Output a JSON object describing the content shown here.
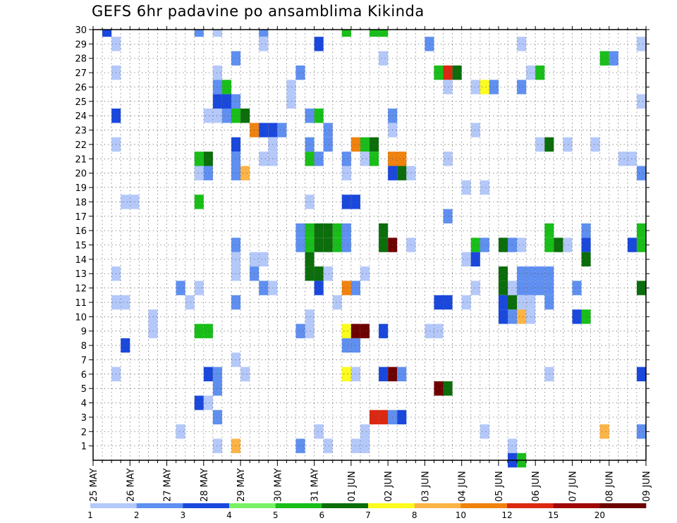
{
  "chart_data": {
    "type": "heatmap",
    "title": "GEFS 6hr padavine po ansamblima Kikinda",
    "xlabel": "",
    "ylabel": "",
    "x_tick_labels": [
      "25 MAY",
      "26 MAY",
      "27 MAY",
      "28 MAY",
      "29 MAY",
      "30 MAY",
      "31 MAY",
      "01 JUN",
      "02 JUN",
      "03 JUN",
      "04 JUN",
      "05 JUN",
      "06 JUN",
      "07 JUN",
      "08 JUN",
      "09 JUN"
    ],
    "x_steps_per_day": 4,
    "x_step_hours": 6,
    "ylim": [
      0,
      30
    ],
    "y_ticks": [
      1,
      2,
      3,
      4,
      5,
      6,
      7,
      8,
      9,
      10,
      11,
      12,
      13,
      14,
      15,
      16,
      17,
      18,
      19,
      20,
      21,
      22,
      23,
      24,
      25,
      26,
      27,
      28,
      29,
      30
    ],
    "grid": true,
    "colorbar": {
      "labels": [
        "1",
        "2",
        "3",
        "4",
        "5",
        "6",
        "7",
        "8",
        "10",
        "12",
        "15",
        "20"
      ],
      "colors": [
        "#b4c8fa",
        "#5f8ff0",
        "#1a48dc",
        "#78f066",
        "#19be19",
        "#0b6e0b",
        "#fcfc1e",
        "#fcb446",
        "#f0820e",
        "#dc2810",
        "#a00808",
        "#6e0000"
      ]
    },
    "cells": [
      [
        1,
        30,
        2
      ],
      [
        2,
        29,
        0
      ],
      [
        2,
        27,
        0
      ],
      [
        2,
        24,
        2
      ],
      [
        2,
        22,
        0
      ],
      [
        2,
        13,
        0
      ],
      [
        2,
        11,
        0
      ],
      [
        2,
        6,
        0
      ],
      [
        3,
        18,
        0
      ],
      [
        3,
        11,
        0
      ],
      [
        3,
        8,
        2
      ],
      [
        4,
        18,
        0
      ],
      [
        6,
        10,
        0
      ],
      [
        6,
        9,
        0
      ],
      [
        9,
        12,
        1
      ],
      [
        9,
        2,
        0
      ],
      [
        10,
        11,
        0
      ],
      [
        11,
        30,
        1
      ],
      [
        11,
        21,
        4
      ],
      [
        11,
        20,
        0
      ],
      [
        11,
        18,
        4
      ],
      [
        11,
        12,
        0
      ],
      [
        11,
        9,
        4
      ],
      [
        11,
        4,
        2
      ],
      [
        12,
        24,
        0
      ],
      [
        12,
        21,
        5
      ],
      [
        12,
        20,
        1
      ],
      [
        12,
        9,
        4
      ],
      [
        12,
        6,
        2
      ],
      [
        12,
        4,
        0
      ],
      [
        13,
        30,
        0
      ],
      [
        13,
        27,
        0
      ],
      [
        13,
        26,
        1
      ],
      [
        13,
        25,
        2
      ],
      [
        13,
        24,
        0
      ],
      [
        13,
        6,
        1
      ],
      [
        13,
        5,
        1
      ],
      [
        13,
        3,
        1
      ],
      [
        13,
        1,
        0
      ],
      [
        14,
        26,
        4
      ],
      [
        14,
        25,
        2
      ],
      [
        14,
        24,
        1
      ],
      [
        15,
        28,
        1
      ],
      [
        15,
        25,
        1
      ],
      [
        15,
        24,
        4
      ],
      [
        15,
        22,
        2
      ],
      [
        15,
        21,
        1
      ],
      [
        15,
        20,
        1
      ],
      [
        15,
        15,
        1
      ],
      [
        15,
        14,
        0
      ],
      [
        15,
        13,
        0
      ],
      [
        15,
        11,
        1
      ],
      [
        15,
        7,
        0
      ],
      [
        15,
        1,
        7
      ],
      [
        16,
        24,
        5
      ],
      [
        16,
        20,
        7
      ],
      [
        16,
        6,
        0
      ],
      [
        17,
        23,
        8
      ],
      [
        17,
        14,
        0
      ],
      [
        17,
        13,
        1
      ],
      [
        18,
        30,
        1
      ],
      [
        18,
        29,
        0
      ],
      [
        18,
        23,
        2
      ],
      [
        18,
        21,
        0
      ],
      [
        18,
        14,
        0
      ],
      [
        18,
        12,
        1
      ],
      [
        19,
        23,
        2
      ],
      [
        19,
        22,
        0
      ],
      [
        19,
        21,
        0
      ],
      [
        19,
        12,
        0
      ],
      [
        20,
        23,
        1
      ],
      [
        21,
        26,
        0
      ],
      [
        21,
        25,
        0
      ],
      [
        22,
        27,
        1
      ],
      [
        22,
        16,
        1
      ],
      [
        22,
        15,
        1
      ],
      [
        22,
        9,
        1
      ],
      [
        22,
        1,
        1
      ],
      [
        23,
        24,
        1
      ],
      [
        23,
        22,
        1
      ],
      [
        23,
        21,
        4
      ],
      [
        23,
        18,
        0
      ],
      [
        23,
        16,
        4
      ],
      [
        23,
        15,
        4
      ],
      [
        23,
        14,
        5
      ],
      [
        23,
        13,
        5
      ],
      [
        23,
        10,
        0
      ],
      [
        23,
        9,
        0
      ],
      [
        24,
        29,
        2
      ],
      [
        24,
        24,
        4
      ],
      [
        24,
        21,
        1
      ],
      [
        24,
        16,
        5
      ],
      [
        24,
        15,
        5
      ],
      [
        24,
        13,
        5
      ],
      [
        24,
        12,
        2
      ],
      [
        24,
        2,
        0
      ],
      [
        25,
        23,
        1
      ],
      [
        25,
        22,
        1
      ],
      [
        25,
        16,
        5
      ],
      [
        25,
        15,
        5
      ],
      [
        25,
        13,
        0
      ],
      [
        25,
        1,
        0
      ],
      [
        26,
        16,
        4
      ],
      [
        26,
        15,
        4
      ],
      [
        26,
        11,
        0
      ],
      [
        27,
        30,
        4
      ],
      [
        27,
        21,
        1
      ],
      [
        27,
        20,
        0
      ],
      [
        27,
        18,
        2
      ],
      [
        27,
        16,
        1
      ],
      [
        27,
        15,
        1
      ],
      [
        27,
        12,
        8
      ],
      [
        27,
        9,
        6
      ],
      [
        27,
        8,
        1
      ],
      [
        27,
        6,
        6
      ],
      [
        28,
        22,
        8
      ],
      [
        28,
        18,
        2
      ],
      [
        28,
        12,
        1
      ],
      [
        28,
        9,
        11
      ],
      [
        28,
        8,
        1
      ],
      [
        28,
        6,
        0
      ],
      [
        28,
        1,
        0
      ],
      [
        29,
        22,
        4
      ],
      [
        29,
        21,
        0
      ],
      [
        29,
        13,
        0
      ],
      [
        29,
        9,
        11
      ],
      [
        29,
        2,
        0
      ],
      [
        29,
        1,
        0
      ],
      [
        30,
        30,
        4
      ],
      [
        30,
        22,
        5
      ],
      [
        30,
        21,
        4
      ],
      [
        30,
        3,
        9
      ],
      [
        31,
        30,
        4
      ],
      [
        31,
        28,
        0
      ],
      [
        31,
        16,
        5
      ],
      [
        31,
        15,
        5
      ],
      [
        31,
        9,
        2
      ],
      [
        31,
        6,
        2
      ],
      [
        31,
        3,
        9
      ],
      [
        32,
        24,
        1
      ],
      [
        32,
        23,
        0
      ],
      [
        32,
        21,
        8
      ],
      [
        32,
        20,
        2
      ],
      [
        32,
        15,
        11
      ],
      [
        32,
        6,
        11
      ],
      [
        32,
        3,
        1
      ],
      [
        33,
        21,
        8
      ],
      [
        33,
        20,
        5
      ],
      [
        33,
        6,
        1
      ],
      [
        33,
        3,
        2
      ],
      [
        34,
        20,
        0
      ],
      [
        34,
        15,
        0
      ],
      [
        36,
        29,
        1
      ],
      [
        36,
        9,
        0
      ],
      [
        37,
        27,
        4
      ],
      [
        37,
        11,
        2
      ],
      [
        37,
        9,
        0
      ],
      [
        37,
        5,
        11
      ],
      [
        38,
        27,
        9
      ],
      [
        38,
        26,
        0
      ],
      [
        38,
        21,
        0
      ],
      [
        38,
        17,
        1
      ],
      [
        38,
        11,
        2
      ],
      [
        38,
        5,
        5
      ],
      [
        39,
        27,
        5
      ],
      [
        40,
        19,
        0
      ],
      [
        40,
        14,
        0
      ],
      [
        40,
        11,
        0
      ],
      [
        41,
        26,
        0
      ],
      [
        41,
        23,
        0
      ],
      [
        41,
        15,
        4
      ],
      [
        41,
        14,
        2
      ],
      [
        41,
        12,
        0
      ],
      [
        42,
        26,
        6
      ],
      [
        42,
        19,
        0
      ],
      [
        42,
        15,
        1
      ],
      [
        42,
        2,
        0
      ],
      [
        43,
        26,
        1
      ],
      [
        44,
        15,
        5
      ],
      [
        44,
        13,
        5
      ],
      [
        44,
        12,
        5
      ],
      [
        44,
        11,
        2
      ],
      [
        44,
        10,
        2
      ],
      [
        45,
        15,
        1
      ],
      [
        45,
        12,
        0
      ],
      [
        45,
        11,
        5
      ],
      [
        45,
        10,
        1
      ],
      [
        45,
        1,
        0
      ],
      [
        45,
        0,
        2
      ],
      [
        46,
        29,
        0
      ],
      [
        46,
        26,
        1
      ],
      [
        46,
        15,
        0
      ],
      [
        46,
        13,
        1
      ],
      [
        46,
        12,
        1
      ],
      [
        46,
        11,
        0
      ],
      [
        46,
        10,
        7
      ],
      [
        46,
        0,
        4
      ],
      [
        47,
        27,
        0
      ],
      [
        47,
        13,
        1
      ],
      [
        47,
        12,
        1
      ],
      [
        47,
        11,
        0
      ],
      [
        47,
        10,
        0
      ],
      [
        48,
        27,
        4
      ],
      [
        48,
        22,
        0
      ],
      [
        48,
        13,
        1
      ],
      [
        48,
        12,
        1
      ],
      [
        49,
        22,
        5
      ],
      [
        49,
        16,
        4
      ],
      [
        49,
        15,
        4
      ],
      [
        49,
        13,
        1
      ],
      [
        49,
        12,
        1
      ],
      [
        49,
        11,
        1
      ],
      [
        49,
        6,
        0
      ],
      [
        50,
        15,
        5
      ],
      [
        51,
        22,
        0
      ],
      [
        51,
        15,
        0
      ],
      [
        52,
        12,
        1
      ],
      [
        52,
        10,
        2
      ],
      [
        53,
        16,
        1
      ],
      [
        53,
        15,
        2
      ],
      [
        53,
        14,
        5
      ],
      [
        53,
        10,
        4
      ],
      [
        54,
        22,
        0
      ],
      [
        55,
        28,
        4
      ],
      [
        55,
        2,
        7
      ],
      [
        56,
        28,
        1
      ],
      [
        57,
        21,
        0
      ],
      [
        58,
        21,
        0
      ],
      [
        58,
        15,
        2
      ],
      [
        59,
        29,
        0
      ],
      [
        59,
        25,
        0
      ],
      [
        59,
        20,
        1
      ],
      [
        59,
        16,
        4
      ],
      [
        59,
        15,
        4
      ],
      [
        59,
        12,
        5
      ],
      [
        59,
        2,
        1
      ],
      [
        59,
        6,
        2
      ]
    ]
  }
}
